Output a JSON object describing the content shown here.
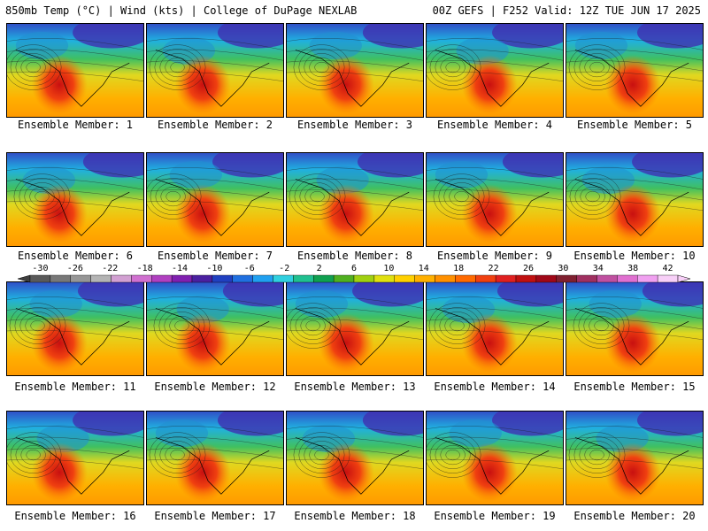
{
  "header": {
    "left": "850mb Temp (°C) | Wind (kts) | College of DuPage NEXLAB",
    "right": "00Z GEFS | F252 Valid: 12Z TUE JUN 17 2025"
  },
  "members": [
    "Ensemble Member: 1",
    "Ensemble Member: 2",
    "Ensemble Member: 3",
    "Ensemble Member: 4",
    "Ensemble Member: 5",
    "Ensemble Member: 6",
    "Ensemble Member: 7",
    "Ensemble Member: 8",
    "Ensemble Member: 9",
    "Ensemble Member: 10",
    "Ensemble Member: 11",
    "Ensemble Member: 12",
    "Ensemble Member: 13",
    "Ensemble Member: 14",
    "Ensemble Member: 15",
    "Ensemble Member: 16",
    "Ensemble Member: 17",
    "Ensemble Member: 18",
    "Ensemble Member: 19",
    "Ensemble Member: 20"
  ],
  "colorbar": {
    "labels": [
      "-30",
      "-26",
      "-22",
      "-18",
      "-14",
      "-10",
      "-6",
      "-2",
      "2",
      "6",
      "10",
      "14",
      "18",
      "22",
      "26",
      "30",
      "34",
      "38",
      "42"
    ],
    "colors": [
      "#5a5a5a",
      "#787878",
      "#969696",
      "#b4b4b4",
      "#d2a0d2",
      "#d070d0",
      "#b040c0",
      "#8020b0",
      "#4a20a0",
      "#2040c0",
      "#2070e0",
      "#20a0f0",
      "#30d0e0",
      "#20c090",
      "#10a050",
      "#50b020",
      "#a0d010",
      "#e0e010",
      "#ffd000",
      "#ffb000",
      "#ff9000",
      "#ff6a00",
      "#f04010",
      "#e02020",
      "#c01010",
      "#a00818",
      "#802030",
      "#a03060",
      "#c050a0",
      "#e070d0",
      "#f0a0f0",
      "#f8d0f8"
    ]
  }
}
